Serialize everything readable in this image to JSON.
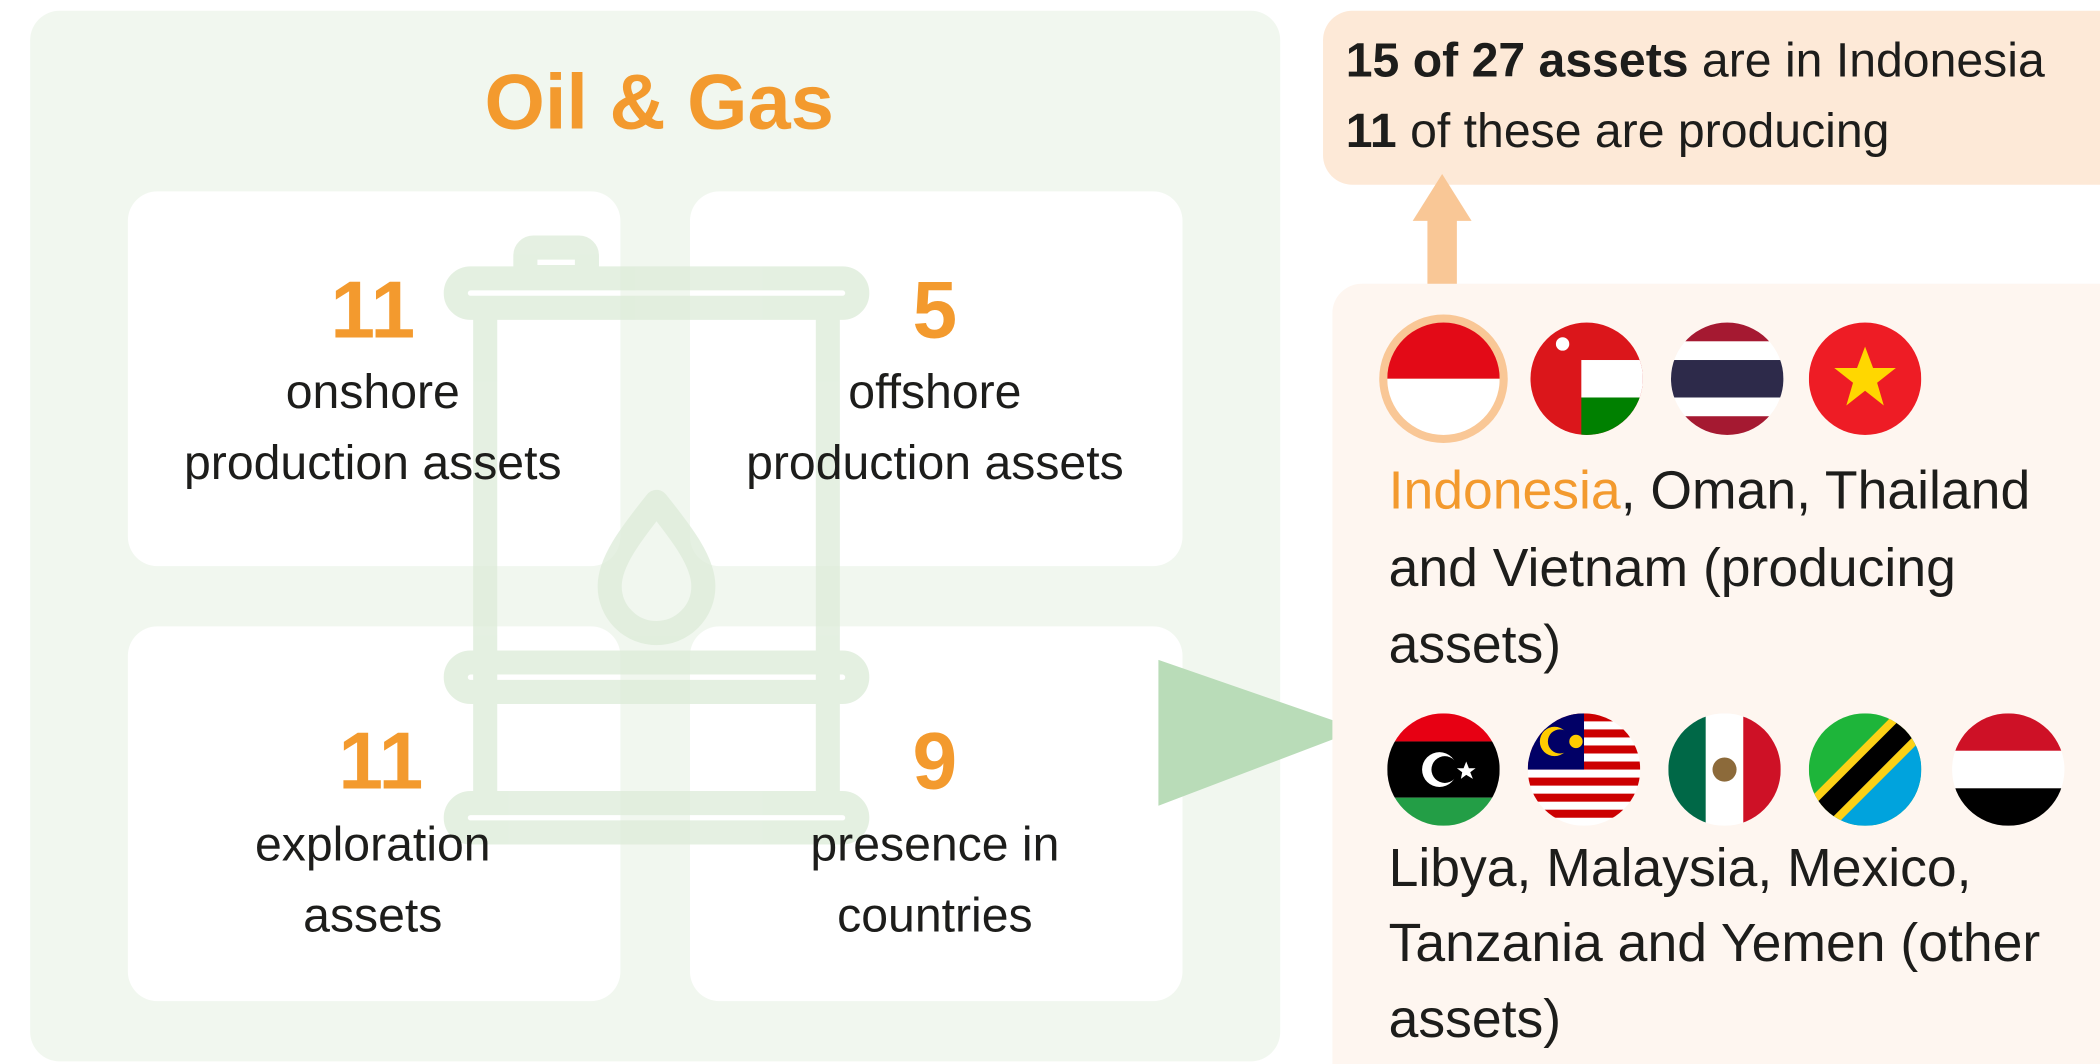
{
  "title": "Oil & Gas",
  "stats": [
    {
      "value": "11",
      "label": [
        "onshore",
        "production assets"
      ]
    },
    {
      "value": "5",
      "label": [
        "offshore",
        "production assets"
      ]
    },
    {
      "value": "11",
      "label": [
        "exploration",
        "assets"
      ]
    },
    {
      "value": "9",
      "label": [
        "presence in",
        "countries"
      ]
    }
  ],
  "callout": {
    "line1": {
      "bold": "15 of 27 assets",
      "rest": " are in Indonesia"
    },
    "line2": {
      "bold": "11",
      "rest": " of these are producing"
    }
  },
  "producing": {
    "highlight": "Indonesia",
    "lines": [
      ", Oman, Thailand",
      "and Vietnam (producing",
      "assets)"
    ]
  },
  "other": {
    "lines": [
      "Libya, Malaysia, Mexico,",
      "Tanzania and Yemen (other",
      "assets)"
    ]
  }
}
